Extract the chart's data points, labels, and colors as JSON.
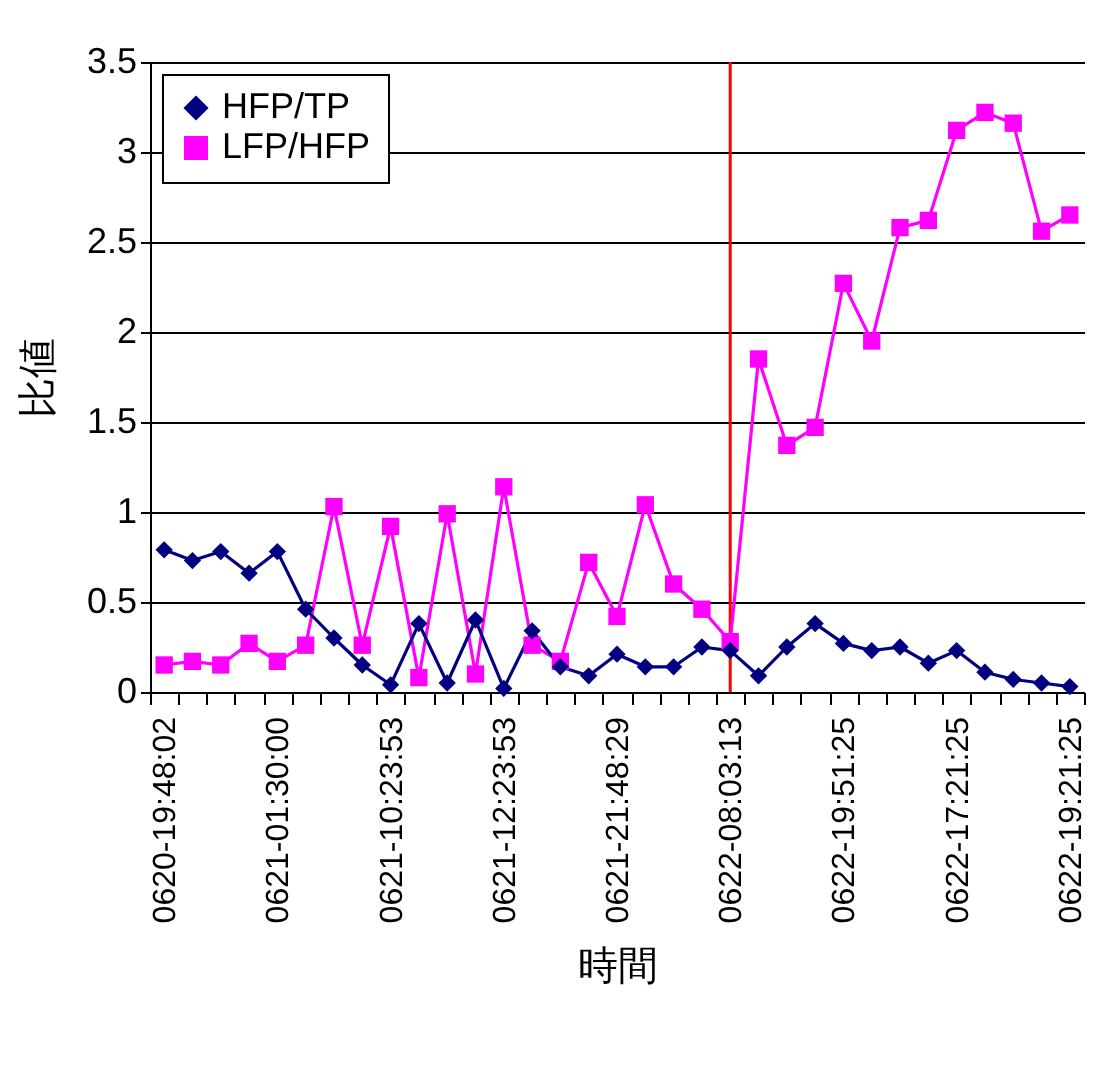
{
  "chart_data": {
    "type": "line",
    "xlabel": "時間",
    "ylabel": "比値",
    "categories": [
      "0620-19:48:02",
      null,
      null,
      null,
      "0621-01:30:00",
      null,
      null,
      null,
      "0621-10:23:53",
      null,
      null,
      null,
      "0621-12:23:53",
      null,
      null,
      null,
      "0621-21:48:29",
      null,
      null,
      null,
      "0622-08:03:13",
      null,
      null,
      null,
      "0622-19:51:25",
      null,
      null,
      null,
      "0622-17:21:25",
      null,
      null,
      null,
      "0622-19:21:25"
    ],
    "series": [
      {
        "name": "HFP/TP",
        "color": "#000080",
        "marker": "diamond",
        "values": [
          0.79,
          0.73,
          0.78,
          0.66,
          0.78,
          0.46,
          0.3,
          0.15,
          0.04,
          0.38,
          0.05,
          0.4,
          0.02,
          0.34,
          0.14,
          0.09,
          0.21,
          0.14,
          0.14,
          0.25,
          0.23,
          0.09,
          0.25,
          0.38,
          0.27,
          0.23,
          0.25,
          0.16,
          0.23,
          0.11,
          0.07,
          0.05,
          0.03
        ]
      },
      {
        "name": "LFP/HFP",
        "color": "#ff00ff",
        "marker": "square",
        "values": [
          0.15,
          0.17,
          0.15,
          0.27,
          0.17,
          0.26,
          1.03,
          0.26,
          0.92,
          0.08,
          0.99,
          0.1,
          1.14,
          0.26,
          0.17,
          0.72,
          0.42,
          1.04,
          0.6,
          0.46,
          0.28,
          1.85,
          1.37,
          1.47,
          2.27,
          1.95,
          2.58,
          2.62,
          3.12,
          3.22,
          3.16,
          2.56,
          2.65
        ]
      }
    ],
    "ylim": [
      0,
      3.5
    ],
    "yticks": [
      0,
      0.5,
      1,
      1.5,
      2,
      2.5,
      3,
      3.5
    ],
    "grid": "y",
    "legend": "top left",
    "ref_lines": [
      {
        "axis": "x",
        "value": "0622-08:03:13",
        "color": "#ff0000"
      }
    ]
  }
}
